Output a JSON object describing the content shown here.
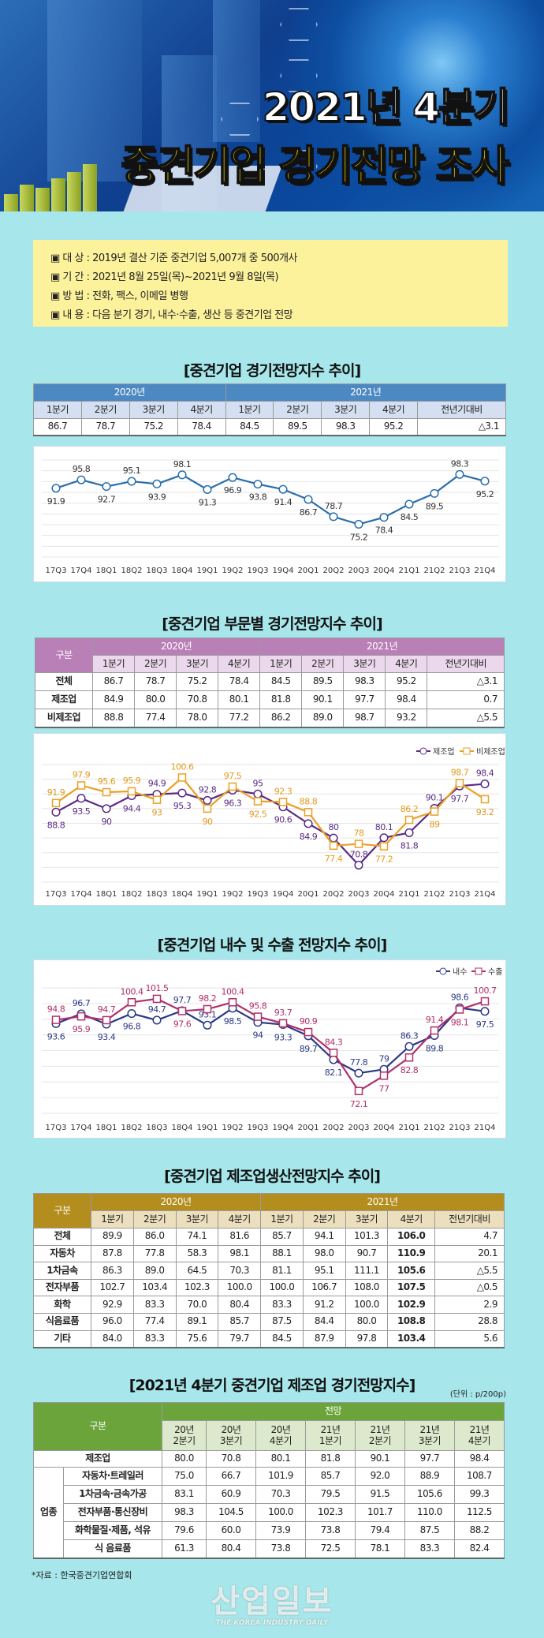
{
  "header": {
    "title_line1": "2021년 4분기",
    "title_line2": "중견기업 경기전망 조사"
  },
  "info": [
    "▣ 대 상 : 2019년 결산 기준 중견기업 5,007개 중 500개사",
    "▣ 기 간 : 2021년 8월 25일(목)~2021년 9월 8일(목)",
    "▣ 방 법 : 전화, 팩스, 이메일 병행",
    "▣ 내 용 : 다음 분기 경기, 내수·수출, 생산 등 중견기업 전망"
  ],
  "colors": {
    "background": "#a7e6ea",
    "table1": "#4c88c2",
    "table2": "#b97fb7",
    "table4": "#b38e1f",
    "table5": "#6aa43b",
    "line1": "#2a6fad",
    "mfg": "#5b2a86",
    "nonmfg": "#eaa024",
    "domestic": "#2b3a86",
    "export": "#b0306a"
  },
  "table1": {
    "title": "[중견기업 경기전망지수 추이]",
    "years": [
      "2020년",
      "2021년"
    ],
    "quarters": [
      "1분기",
      "2분기",
      "3분기",
      "4분기",
      "1분기",
      "2분기",
      "3분기",
      "4분기",
      "전년기대비"
    ],
    "rows": [
      {
        "label": "",
        "values": [
          "86.7",
          "78.7",
          "75.2",
          "78.4",
          "84.5",
          "89.5",
          "98.3",
          "95.2",
          "△3.1"
        ]
      }
    ]
  },
  "table2": {
    "title": "[중견기업 부문별 경기전망지수 추이]",
    "corner": "구분",
    "years": [
      "2020년",
      "2021년"
    ],
    "quarters": [
      "1분기",
      "2분기",
      "3분기",
      "4분기",
      "1분기",
      "2분기",
      "3분기",
      "4분기",
      "전년기대비"
    ],
    "rows": [
      {
        "label": "전체",
        "values": [
          "86.7",
          "78.7",
          "75.2",
          "78.4",
          "84.5",
          "89.5",
          "98.3",
          "95.2",
          "△3.1"
        ]
      },
      {
        "label": "제조업",
        "values": [
          "84.9",
          "80.0",
          "70.8",
          "80.1",
          "81.8",
          "90.1",
          "97.7",
          "98.4",
          "0.7"
        ]
      },
      {
        "label": "비제조업",
        "values": [
          "88.8",
          "77.4",
          "78.0",
          "77.2",
          "86.2",
          "89.0",
          "98.7",
          "93.2",
          "△5.5"
        ]
      }
    ]
  },
  "table3": {
    "title": "[중견기업 내수 및 수출 전망지수 추이]"
  },
  "table4": {
    "title": "[중견기업 제조업생산전망지수 추이]",
    "corner": "구분",
    "years": [
      "2020년",
      "2021년"
    ],
    "quarters": [
      "1분기",
      "2분기",
      "3분기",
      "4분기",
      "1분기",
      "2분기",
      "3분기",
      "4분기",
      "전년기대비"
    ],
    "rows": [
      {
        "label": "전체",
        "values": [
          "89.9",
          "86.0",
          "74.1",
          "81.6",
          "85.7",
          "94.1",
          "101.3",
          "106.0",
          "4.7"
        ]
      },
      {
        "label": "자동차",
        "values": [
          "87.8",
          "77.8",
          "58.3",
          "98.1",
          "88.1",
          "98.0",
          "90.7",
          "110.9",
          "20.1"
        ]
      },
      {
        "label": "1차금속",
        "values": [
          "86.3",
          "89.0",
          "64.5",
          "70.3",
          "81.1",
          "95.1",
          "111.1",
          "105.6",
          "△5.5"
        ]
      },
      {
        "label": "전자부품",
        "values": [
          "102.7",
          "103.4",
          "102.3",
          "100.0",
          "100.0",
          "106.7",
          "108.0",
          "107.5",
          "△0.5"
        ]
      },
      {
        "label": "화학",
        "values": [
          "92.9",
          "83.3",
          "70.0",
          "80.4",
          "83.3",
          "91.2",
          "100.0",
          "102.9",
          "2.9"
        ]
      },
      {
        "label": "식음료품",
        "values": [
          "96.0",
          "77.4",
          "89.1",
          "85.7",
          "87.5",
          "84.4",
          "80.0",
          "108.8",
          "28.8"
        ]
      },
      {
        "label": "기타",
        "values": [
          "84.0",
          "83.3",
          "75.6",
          "79.7",
          "84.5",
          "87.9",
          "97.8",
          "103.4",
          "5.6"
        ]
      }
    ]
  },
  "table5": {
    "title": "[2021년 4분기 중견기업 제조업 경기전망지수]",
    "unit": "(단위 : p/200p)",
    "corner": "구분",
    "group": "전망",
    "quarters": [
      "20년\n2분기",
      "20년\n3분기",
      "20년\n4분기",
      "21년\n1분기",
      "21년\n2분기",
      "21년\n3분기",
      "21년\n4분기"
    ],
    "total": {
      "label": "제조업",
      "values": [
        "80.0",
        "70.8",
        "80.1",
        "81.8",
        "90.1",
        "97.7",
        "98.4"
      ]
    },
    "sector_label": "업종",
    "rows": [
      {
        "label": "자동차·트레일러",
        "values": [
          "75.0",
          "66.7",
          "101.9",
          "85.7",
          "92.0",
          "88.9",
          "108.7"
        ]
      },
      {
        "label": "1차금속·금속가공",
        "values": [
          "83.1",
          "60.9",
          "70.3",
          "79.5",
          "91.5",
          "105.6",
          "99.3"
        ]
      },
      {
        "label": "전자부품·통신장비",
        "values": [
          "98.3",
          "104.5",
          "100.0",
          "102.3",
          "101.7",
          "110.0",
          "112.5"
        ]
      },
      {
        "label": "화학물질·제품, 석유",
        "values": [
          "79.6",
          "60.0",
          "73.9",
          "73.8",
          "79.4",
          "87.5",
          "88.2"
        ]
      },
      {
        "label": "식 음료품",
        "values": [
          "61.3",
          "80.4",
          "73.8",
          "72.5",
          "78.1",
          "83.3",
          "82.4"
        ]
      }
    ]
  },
  "footnote": "*자료 : 한국중견기업연합회",
  "logo": {
    "korean": "산업일보",
    "english": "THE KOREA INDUSTRY DAILY"
  },
  "chart_data": [
    {
      "type": "line",
      "categories": [
        "17Q3",
        "17Q4",
        "18Q1",
        "18Q2",
        "18Q3",
        "18Q4",
        "19Q1",
        "19Q2",
        "19Q3",
        "19Q4",
        "20Q1",
        "20Q2",
        "20Q3",
        "20Q4",
        "21Q1",
        "21Q2",
        "21Q3",
        "21Q4"
      ],
      "ylim": [
        60,
        105
      ],
      "grid": true,
      "series": [
        {
          "values": [
            91.9,
            95.8,
            92.7,
            95.1,
            93.9,
            98.1,
            91.3,
            96.9,
            93.8,
            91.4,
            86.7,
            78.7,
            75.2,
            78.4,
            84.5,
            89.5,
            98.3,
            95.2
          ],
          "color": "#2a6fad",
          "marker": "circle"
        }
      ]
    },
    {
      "type": "line",
      "categories": [
        "17Q3",
        "17Q4",
        "18Q1",
        "18Q2",
        "18Q3",
        "18Q4",
        "19Q1",
        "19Q2",
        "19Q3",
        "19Q4",
        "20Q1",
        "20Q2",
        "20Q3",
        "20Q4",
        "21Q1",
        "21Q2",
        "21Q3",
        "21Q4"
      ],
      "ylim": [
        65,
        105
      ],
      "grid": true,
      "legend": "top-right",
      "series": [
        {
          "name": "제조업",
          "values": [
            88.8,
            93.5,
            90.0,
            94.4,
            94.9,
            95.3,
            92.8,
            96.3,
            95.0,
            90.6,
            84.9,
            80.0,
            70.8,
            80.1,
            81.8,
            90.1,
            97.7,
            98.4
          ],
          "color": "#5b2a86",
          "marker": "circle"
        },
        {
          "name": "비제조업",
          "values": [
            91.9,
            97.9,
            95.6,
            95.9,
            93.0,
            100.6,
            90.0,
            97.5,
            92.5,
            92.3,
            88.8,
            77.4,
            78.0,
            77.2,
            86.2,
            89.0,
            98.7,
            93.2
          ],
          "color": "#eaa024",
          "marker": "square"
        }
      ]
    },
    {
      "type": "line",
      "categories": [
        "17Q3",
        "17Q4",
        "18Q1",
        "18Q2",
        "18Q3",
        "18Q4",
        "19Q1",
        "19Q2",
        "19Q3",
        "19Q4",
        "20Q1",
        "20Q2",
        "20Q3",
        "20Q4",
        "21Q1",
        "21Q2",
        "21Q3",
        "21Q4"
      ],
      "ylim": [
        65,
        105
      ],
      "grid": true,
      "legend": "top-right",
      "series": [
        {
          "name": "내수",
          "values": [
            93.6,
            96.7,
            93.4,
            96.8,
            94.7,
            97.7,
            93.1,
            98.5,
            94.0,
            93.3,
            89.7,
            82.1,
            77.8,
            79.0,
            86.3,
            89.8,
            98.6,
            97.5
          ],
          "color": "#2b3a86",
          "marker": "circle"
        },
        {
          "name": "수출",
          "values": [
            94.8,
            95.9,
            94.7,
            100.4,
            101.5,
            97.6,
            98.2,
            100.4,
            95.8,
            93.7,
            90.9,
            84.3,
            72.1,
            77.0,
            82.8,
            91.4,
            98.1,
            100.7
          ],
          "color": "#b0306a",
          "marker": "square"
        }
      ]
    }
  ]
}
